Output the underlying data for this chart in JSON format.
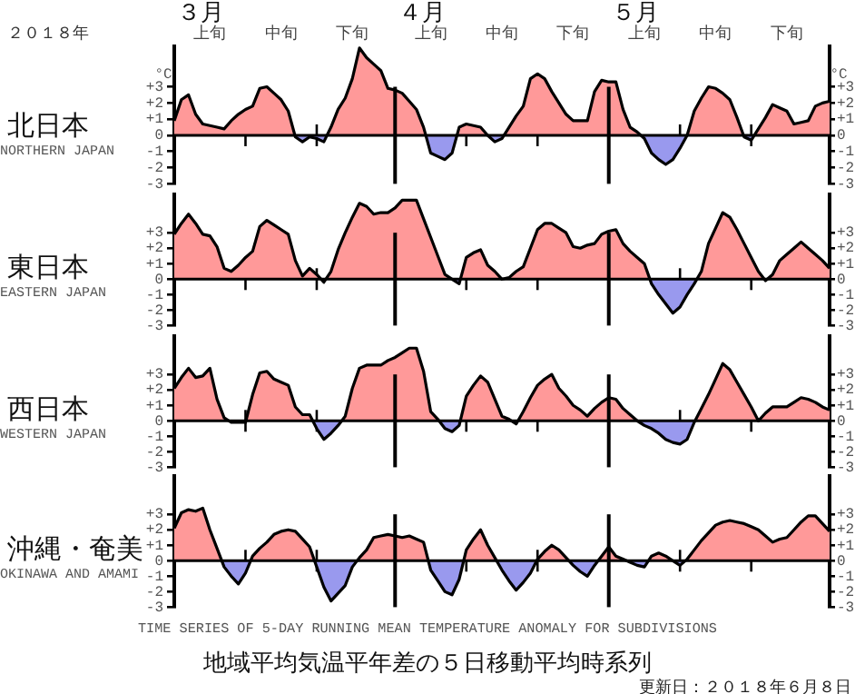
{
  "chart_data": [
    {
      "type": "area",
      "title": "北日本",
      "subtitle": "NORTHERN JAPAN",
      "ylabel": "°C",
      "y2label": "°C",
      "marker": "none",
      "line_style": "solid",
      "annotations": [
        "２０１８年",
        "３月",
        "４月",
        "５月"
      ],
      "categories": [
        null,
        null,
        null,
        null,
        null,
        "上旬",
        null,
        null,
        null,
        null,
        null,
        null,
        null,
        null,
        null,
        "中旬",
        null,
        null,
        null,
        null,
        null,
        null,
        null,
        null,
        null,
        "下旬",
        null,
        null,
        null,
        null,
        null,
        null,
        null,
        null,
        null,
        null,
        "上旬",
        null,
        null,
        null,
        null,
        null,
        null,
        null,
        null,
        null,
        "中旬",
        null,
        null,
        null,
        null,
        null,
        null,
        null,
        null,
        null,
        "下旬",
        null,
        null,
        null,
        null,
        null,
        null,
        null,
        null,
        null,
        "上旬",
        null,
        null,
        null,
        null,
        null,
        null,
        null,
        null,
        null,
        "中旬",
        null,
        null,
        null,
        null,
        null,
        null,
        null,
        null,
        null,
        "下旬",
        null,
        null,
        null,
        null,
        null,
        null
      ],
      "ylim": [
        -3,
        5.5
      ],
      "yticks": [
        {
          "value": -3,
          "label": "-3"
        },
        {
          "value": -2,
          "label": "-2"
        },
        {
          "value": -1,
          "label": "-1"
        },
        {
          "value": 0,
          "label": "0"
        },
        {
          "value": 1,
          "label": "+1"
        },
        {
          "value": 2,
          "label": "+2"
        },
        {
          "value": 3,
          "label": "+3"
        }
      ],
      "y2lim": [
        -3,
        5.5
      ],
      "y2ticks": [
        {
          "value": -3,
          "label": "-3"
        },
        {
          "value": -2,
          "label": "-2"
        },
        {
          "value": -1,
          "label": "-1"
        },
        {
          "value": 0,
          "label": "0"
        },
        {
          "value": 1,
          "label": "+1"
        },
        {
          "value": 2,
          "label": "+2"
        },
        {
          "value": 3,
          "label": "+3"
        }
      ],
      "series": [
        {
          "color": "#000000",
          "values": [
            0.9,
            2.2,
            2.5,
            1.3,
            0.7,
            0.6,
            0.5,
            0.4,
            0.9,
            1.3,
            1.6,
            1.8,
            2.9,
            3.0,
            2.6,
            2.2,
            1.5,
            -0.1,
            -0.4,
            -0.1,
            -0.2,
            -0.4,
            0.5,
            1.6,
            2.3,
            3.5,
            5.4,
            4.8,
            4.4,
            4.0,
            2.9,
            2.8,
            2.6,
            2.1,
            1.6,
            0.5,
            -1.1,
            -1.3,
            -1.5,
            -1.1,
            0.5,
            0.7,
            0.6,
            0.5,
            0.0,
            -0.4,
            -0.2,
            0.5,
            1.2,
            1.8,
            3.5,
            3.8,
            3.5,
            2.7,
            2.0,
            1.3,
            0.9,
            0.9,
            0.9,
            2.7,
            3.4,
            3.3,
            3.3,
            1.6,
            0.5,
            0.2,
            -0.2,
            -1.1,
            -1.5,
            -1.8,
            -1.5,
            -0.8,
            0.0,
            1.5,
            2.3,
            3.0,
            2.9,
            2.6,
            2.2,
            1.1,
            -0.1,
            -0.3,
            0.4,
            1.1,
            1.9,
            1.7,
            1.5,
            0.7,
            0.8,
            0.9,
            1.8,
            2.0,
            2.1
          ]
        }
      ]
    },
    {
      "type": "area",
      "title": "東日本",
      "subtitle": "EASTERN JAPAN",
      "marker": "none",
      "line_style": "solid",
      "categories": [
        null,
        null,
        null,
        null,
        null,
        null,
        null,
        null,
        null,
        null,
        null,
        null,
        null,
        null,
        null,
        null,
        null,
        null,
        null,
        null,
        null,
        null,
        null,
        null,
        null,
        null,
        null,
        null,
        null,
        null,
        null,
        null,
        null,
        null,
        null,
        null,
        null,
        null,
        null,
        null,
        null,
        null,
        null,
        null,
        null,
        null,
        null,
        null,
        null,
        null,
        null,
        null,
        null,
        null,
        null,
        null,
        null,
        null,
        null,
        null,
        null,
        null,
        null,
        null,
        null,
        null,
        null,
        null,
        null,
        null,
        null,
        null,
        null,
        null,
        null,
        null,
        null,
        null,
        null,
        null,
        null,
        null,
        null,
        null,
        null,
        null,
        null,
        null,
        null,
        null,
        null,
        null,
        null
      ],
      "ylim": [
        -3,
        5.5
      ],
      "yticks": [
        {
          "value": -3,
          "label": "-3"
        },
        {
          "value": -2,
          "label": "-2"
        },
        {
          "value": -1,
          "label": "-1"
        },
        {
          "value": 0,
          "label": "0"
        },
        {
          "value": 1,
          "label": "+1"
        },
        {
          "value": 2,
          "label": "+2"
        },
        {
          "value": 3,
          "label": "+3"
        }
      ],
      "y2lim": [
        -3,
        5.5
      ],
      "y2ticks": [
        {
          "value": -3,
          "label": "-3"
        },
        {
          "value": -2,
          "label": "-2"
        },
        {
          "value": -1,
          "label": "-1"
        },
        {
          "value": 0,
          "label": "0"
        },
        {
          "value": 1,
          "label": "+1"
        },
        {
          "value": 2,
          "label": "+2"
        },
        {
          "value": 3,
          "label": "+3"
        }
      ],
      "series": [
        {
          "color": "#000000",
          "values": [
            2.9,
            3.6,
            4.2,
            3.6,
            2.9,
            2.8,
            2.1,
            0.7,
            0.5,
            0.9,
            1.4,
            1.8,
            3.4,
            3.8,
            3.5,
            3.2,
            2.9,
            1.2,
            0.2,
            0.7,
            0.3,
            -0.2,
            0.5,
            1.9,
            3.0,
            4.0,
            4.9,
            4.7,
            4.2,
            4.3,
            4.3,
            4.6,
            5.1,
            5.1,
            5.1,
            3.9,
            2.7,
            1.5,
            0.3,
            0.0,
            -0.3,
            1.4,
            1.7,
            1.9,
            0.9,
            0.5,
            0.0,
            0.1,
            0.5,
            0.8,
            2.0,
            3.2,
            3.6,
            3.6,
            3.3,
            3.0,
            2.1,
            2.0,
            2.2,
            2.3,
            2.9,
            3.1,
            3.2,
            2.3,
            1.8,
            1.4,
            1.0,
            -0.3,
            -1.0,
            -1.6,
            -2.2,
            -1.8,
            -1.0,
            -0.3,
            0.5,
            2.3,
            3.3,
            4.3,
            4.0,
            3.2,
            2.3,
            1.4,
            0.5,
            -0.1,
            0.3,
            1.2,
            1.6,
            2.0,
            2.4,
            2.0,
            1.6,
            1.2,
            0.7
          ]
        }
      ]
    },
    {
      "type": "area",
      "title": "西日本",
      "subtitle": "WESTERN JAPAN",
      "marker": "none",
      "line_style": "solid",
      "categories": [
        null,
        null,
        null,
        null,
        null,
        null,
        null,
        null,
        null,
        null,
        null,
        null,
        null,
        null,
        null,
        null,
        null,
        null,
        null,
        null,
        null,
        null,
        null,
        null,
        null,
        null,
        null,
        null,
        null,
        null,
        null,
        null,
        null,
        null,
        null,
        null,
        null,
        null,
        null,
        null,
        null,
        null,
        null,
        null,
        null,
        null,
        null,
        null,
        null,
        null,
        null,
        null,
        null,
        null,
        null,
        null,
        null,
        null,
        null,
        null,
        null,
        null,
        null,
        null,
        null,
        null,
        null,
        null,
        null,
        null,
        null,
        null,
        null,
        null,
        null,
        null,
        null,
        null,
        null,
        null,
        null,
        null,
        null,
        null,
        null,
        null,
        null,
        null,
        null,
        null,
        null,
        null,
        null
      ],
      "ylim": [
        -3,
        5.5
      ],
      "yticks": [
        {
          "value": -3,
          "label": "-3"
        },
        {
          "value": -2,
          "label": "-2"
        },
        {
          "value": -1,
          "label": "-1"
        },
        {
          "value": 0,
          "label": "0"
        },
        {
          "value": 1,
          "label": "+1"
        },
        {
          "value": 2,
          "label": "+2"
        },
        {
          "value": 3,
          "label": "+3"
        }
      ],
      "y2lim": [
        -3,
        5.5
      ],
      "y2ticks": [
        {
          "value": -3,
          "label": "-3"
        },
        {
          "value": -2,
          "label": "-2"
        },
        {
          "value": -1,
          "label": "-1"
        },
        {
          "value": 0,
          "label": "0"
        },
        {
          "value": 1,
          "label": "+1"
        },
        {
          "value": 2,
          "label": "+2"
        },
        {
          "value": 3,
          "label": "+3"
        }
      ],
      "series": [
        {
          "color": "#000000",
          "values": [
            2.1,
            2.8,
            3.4,
            2.8,
            2.9,
            3.4,
            1.4,
            0.2,
            -0.1,
            -0.1,
            -0.1,
            1.7,
            3.1,
            3.2,
            2.7,
            2.5,
            2.3,
            0.9,
            0.4,
            0.4,
            -0.5,
            -1.2,
            -0.8,
            -0.3,
            0.3,
            2.1,
            3.4,
            3.6,
            3.6,
            3.6,
            3.9,
            4.1,
            4.4,
            4.7,
            4.7,
            3.2,
            0.6,
            0.1,
            -0.5,
            -0.7,
            -0.3,
            1.6,
            2.3,
            2.9,
            2.5,
            1.4,
            0.3,
            0.1,
            -0.2,
            0.6,
            1.5,
            2.3,
            2.7,
            3.0,
            2.1,
            1.6,
            1.0,
            0.7,
            0.3,
            0.8,
            1.2,
            1.5,
            1.4,
            0.8,
            0.4,
            0.0,
            -0.3,
            -0.5,
            -0.8,
            -1.2,
            -1.4,
            -1.5,
            -1.2,
            -0.1,
            0.8,
            1.7,
            2.7,
            3.7,
            3.3,
            2.5,
            1.7,
            0.9,
            0.0,
            0.5,
            0.9,
            0.9,
            0.9,
            1.2,
            1.5,
            1.4,
            1.2,
            0.9,
            0.7
          ]
        }
      ]
    },
    {
      "type": "area",
      "title": "沖縄・奄美",
      "subtitle": "OKINAWA AND AMAMI",
      "marker": "none",
      "line_style": "solid",
      "annotations": [
        "TIME SERIES OF 5-DAY RUNNING MEAN TEMPERATURE ANOMALY FOR SUBDIVISIONS",
        "地域平均気温平年差の５日移動平均時系列",
        "更新日：２０１８年６月８日"
      ],
      "categories": [
        null,
        null,
        null,
        null,
        null,
        null,
        null,
        null,
        null,
        null,
        null,
        null,
        null,
        null,
        null,
        null,
        null,
        null,
        null,
        null,
        null,
        null,
        null,
        null,
        null,
        null,
        null,
        null,
        null,
        null,
        null,
        null,
        null,
        null,
        null,
        null,
        null,
        null,
        null,
        null,
        null,
        null,
        null,
        null,
        null,
        null,
        null,
        null,
        null,
        null,
        null,
        null,
        null,
        null,
        null,
        null,
        null,
        null,
        null,
        null,
        null,
        null,
        null,
        null,
        null,
        null,
        null,
        null,
        null,
        null,
        null,
        null,
        null,
        null,
        null,
        null,
        null,
        null,
        null,
        null,
        null,
        null,
        null,
        null,
        null,
        null,
        null,
        null,
        null,
        null,
        null,
        null,
        null
      ],
      "ylim": [
        -3,
        5.5
      ],
      "yticks": [
        {
          "value": -3,
          "label": "-3"
        },
        {
          "value": -2,
          "label": "-2"
        },
        {
          "value": -1,
          "label": "-1"
        },
        {
          "value": 0,
          "label": "0"
        },
        {
          "value": 1,
          "label": "+1"
        },
        {
          "value": 2,
          "label": "+2"
        },
        {
          "value": 3,
          "label": "+3"
        }
      ],
      "y2lim": [
        -3,
        5.5
      ],
      "y2ticks": [
        {
          "value": -3,
          "label": "-3"
        },
        {
          "value": -2,
          "label": "-2"
        },
        {
          "value": -1,
          "label": "-1"
        },
        {
          "value": 0,
          "label": "0"
        },
        {
          "value": 1,
          "label": "+1"
        },
        {
          "value": 2,
          "label": "+2"
        },
        {
          "value": 3,
          "label": "+3"
        }
      ],
      "series": [
        {
          "color": "#000000",
          "values": [
            2.1,
            3.1,
            3.3,
            3.2,
            3.4,
            2.0,
            0.8,
            -0.4,
            -1.0,
            -1.5,
            -0.8,
            0.3,
            0.8,
            1.2,
            1.7,
            1.9,
            2.0,
            1.9,
            1.4,
            0.9,
            -0.4,
            -1.7,
            -2.6,
            -2.1,
            -1.6,
            -0.4,
            0.2,
            0.7,
            1.5,
            1.6,
            1.7,
            1.6,
            1.5,
            1.6,
            1.4,
            1.2,
            -0.6,
            -1.3,
            -2.0,
            -2.2,
            -1.2,
            0.7,
            1.4,
            2.0,
            1.0,
            0.2,
            -0.6,
            -1.3,
            -1.9,
            -1.4,
            -0.8,
            0.1,
            0.6,
            1.0,
            0.7,
            0.2,
            -0.3,
            -0.7,
            -1.0,
            -0.3,
            0.3,
            0.9,
            0.3,
            0.1,
            -0.1,
            -0.3,
            -0.4,
            0.3,
            0.5,
            0.3,
            0.0,
            -0.3,
            0.1,
            0.7,
            1.3,
            1.8,
            2.3,
            2.5,
            2.6,
            2.5,
            2.4,
            2.2,
            2.0,
            1.6,
            1.2,
            1.4,
            1.5,
            2.0,
            2.5,
            2.9,
            2.9,
            2.4,
            1.9
          ]
        }
      ]
    }
  ]
}
